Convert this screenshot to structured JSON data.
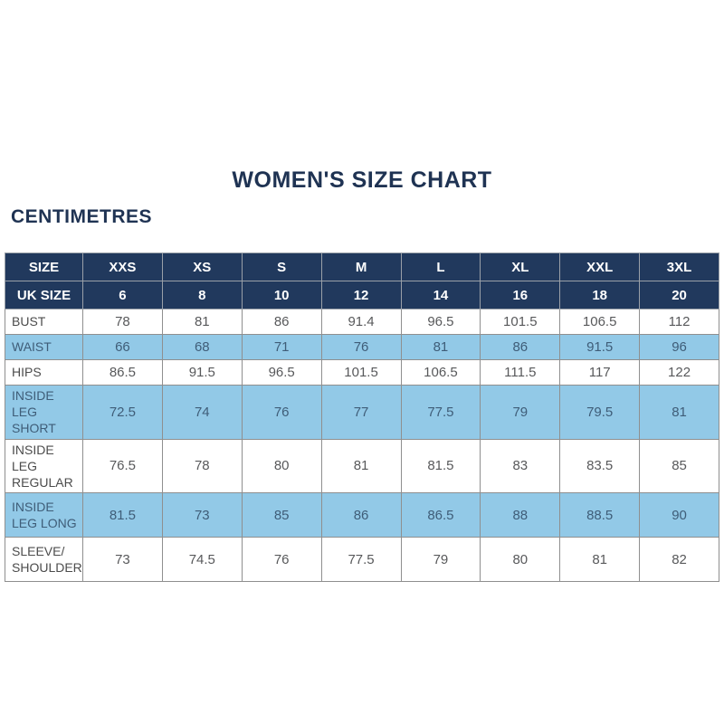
{
  "title": "WOMEN'S SIZE CHART",
  "unit_label": "CENTIMETRES",
  "colors": {
    "navy_header_bg": "#21395d",
    "header_text": "#ffffff",
    "shaded_row_bg": "#92c9e7",
    "body_text": "#58595b",
    "shaded_row_text": "#3f5d78",
    "title_text": "#1f3353",
    "grid_border": "#8f8f8f",
    "page_bg": "#ffffff"
  },
  "chart_data": {
    "type": "table",
    "title": "WOMEN'S SIZE CHART",
    "unit": "CENTIMETRES",
    "header_rows": [
      {
        "label": "SIZE",
        "values": [
          "XXS",
          "XS",
          "S",
          "M",
          "L",
          "XL",
          "XXL",
          "3XL"
        ]
      },
      {
        "label": "UK SIZE",
        "values": [
          "6",
          "8",
          "10",
          "12",
          "14",
          "16",
          "18",
          "20"
        ]
      }
    ],
    "body_rows": [
      {
        "label": "BUST",
        "values": [
          "78",
          "81",
          "86",
          "91.4",
          "96.5",
          "101.5",
          "106.5",
          "112"
        ]
      },
      {
        "label": "WAIST",
        "values": [
          "66",
          "68",
          "71",
          "76",
          "81",
          "86",
          "91.5",
          "96"
        ]
      },
      {
        "label": "HIPS",
        "values": [
          "86.5",
          "91.5",
          "96.5",
          "101.5",
          "106.5",
          "111.5",
          "117",
          "122"
        ]
      },
      {
        "label": "INSIDE LEG SHORT",
        "values": [
          "72.5",
          "74",
          "76",
          "77",
          "77.5",
          "79",
          "79.5",
          "81"
        ]
      },
      {
        "label": "INSIDE LEG REGULAR",
        "values": [
          "76.5",
          "78",
          "80",
          "81",
          "81.5",
          "83",
          "83.5",
          "85"
        ]
      },
      {
        "label": "INSIDE LEG LONG",
        "values": [
          "81.5",
          "73",
          "85",
          "86",
          "86.5",
          "88",
          "88.5",
          "90"
        ]
      },
      {
        "label": "SLEEVE/ SHOULDER",
        "values": [
          "73",
          "74.5",
          "76",
          "77.5",
          "79",
          "80",
          "81",
          "82"
        ]
      }
    ]
  }
}
